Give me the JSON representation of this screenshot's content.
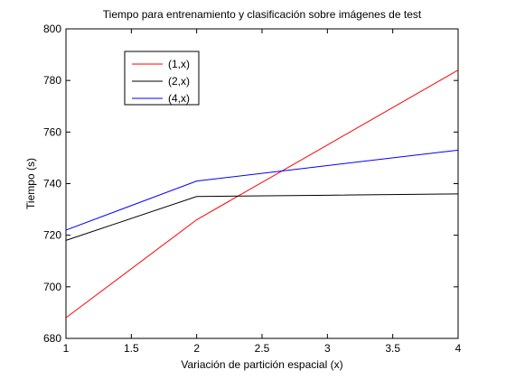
{
  "chart_data": {
    "type": "line",
    "title": "Tiempo para entrenamiento y clasificación sobre imágenes de test",
    "xlabel": "Variación de partición espacial (x)",
    "ylabel": "Tiempo (s)",
    "xlim": [
      1,
      4
    ],
    "ylim": [
      680,
      800
    ],
    "xticks": [
      "1",
      "1.5",
      "2",
      "2.5",
      "3",
      "3.5",
      "4"
    ],
    "yticks": [
      "680",
      "700",
      "720",
      "740",
      "760",
      "780",
      "800"
    ],
    "grid": false,
    "legend_position": "top-left",
    "x": [
      1,
      2,
      3,
      4
    ],
    "series": [
      {
        "name": "(1,x)",
        "color": "#ff0000",
        "values": [
          688,
          726,
          755,
          784
        ]
      },
      {
        "name": "(2,x)",
        "color": "#000000",
        "values": [
          718,
          735,
          735.5,
          736
        ]
      },
      {
        "name": "(4,x)",
        "color": "#0000ff",
        "values": [
          722,
          741,
          747,
          753
        ]
      }
    ]
  }
}
